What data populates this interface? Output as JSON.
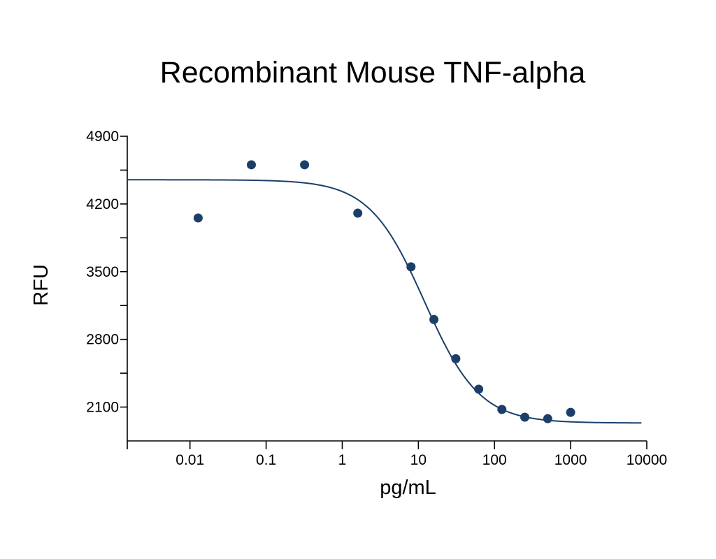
{
  "chart_data": {
    "type": "scatter",
    "title": "Recombinant Mouse TNF-alpha",
    "xlabel": "pg/mL",
    "ylabel": "RFU",
    "x_scale": "log",
    "xlim": [
      0.0015,
      10000
    ],
    "ylim": [
      1750,
      4900
    ],
    "x_ticks": [
      0.01,
      0.1,
      1,
      10,
      100,
      1000,
      10000
    ],
    "x_tick_labels": [
      "0.01",
      "0.1",
      "1",
      "10",
      "100",
      "1000",
      "10000"
    ],
    "y_ticks": [
      2100,
      2800,
      3500,
      4200,
      4900
    ],
    "y_tick_labels": [
      "2100",
      "2800",
      "3500",
      "4200",
      "4900"
    ],
    "y_minor_ticks": [
      2450,
      3150,
      3850,
      4550
    ],
    "grid": false,
    "colors": {
      "points": "#1b3f68",
      "curve": "#1b3f68",
      "axis": "#000000"
    },
    "series": [
      {
        "points": [
          {
            "x": 0.0128,
            "y": 4055
          },
          {
            "x": 0.064,
            "y": 4605
          },
          {
            "x": 0.32,
            "y": 4605
          },
          {
            "x": 1.6,
            "y": 4105
          },
          {
            "x": 8.0,
            "y": 3550
          },
          {
            "x": 16.0,
            "y": 3005
          },
          {
            "x": 31.0,
            "y": 2600
          },
          {
            "x": 62.0,
            "y": 2285
          },
          {
            "x": 125.0,
            "y": 2075
          },
          {
            "x": 250.0,
            "y": 1995
          },
          {
            "x": 500.0,
            "y": 1980
          },
          {
            "x": 1000.0,
            "y": 2045
          }
        ]
      }
    ],
    "fit_curve": {
      "model": "4PL",
      "top": 4450,
      "bottom": 1935,
      "ec50": 12,
      "hill": 1.2,
      "x_range": [
        0.0015,
        8500
      ]
    }
  }
}
